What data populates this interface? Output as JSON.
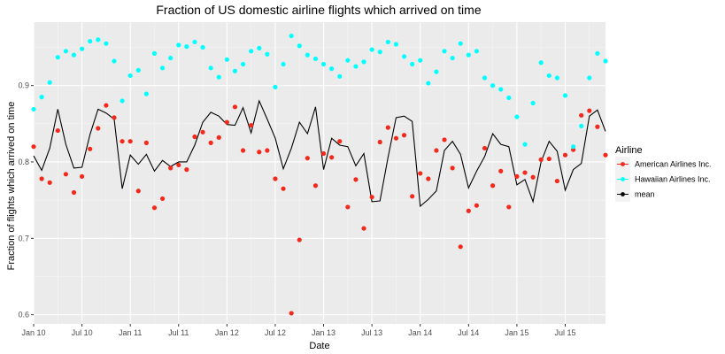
{
  "chart_data": {
    "type": "scatter",
    "title": "Fraction of US domestic airline flights which arrived on time",
    "xlabel": "Date",
    "ylabel": "Fraction of flights which arrived on time",
    "x_tick_labels": [
      "Jan 10",
      "Jul 10",
      "Jan 11",
      "Jul 11",
      "Jan 12",
      "Jul 12",
      "Jan 13",
      "Jul 13",
      "Jan 14",
      "Jul 14",
      "Jan 15",
      "Jul 15"
    ],
    "y_ticks": [
      0.6,
      0.7,
      0.8,
      0.9
    ],
    "y_tick_labels": [
      "0.6",
      "0.7",
      "0.8",
      "0.9"
    ],
    "ylim": [
      0.588,
      0.983
    ],
    "x_range_months": [
      0,
      71
    ],
    "grid": true,
    "legend": {
      "title": "Airline",
      "position": "right",
      "entries": [
        "American Airlines Inc.",
        "Hawaiian Airlines Inc.",
        "mean"
      ]
    },
    "colors": {
      "american": "#f8766d",
      "american_fill": "#f3291c",
      "hawaiian": "#00ffff",
      "mean": "#000000",
      "panel": "#ebebeb",
      "grid_major": "#ffffff"
    },
    "series": [
      {
        "name": "American Airlines Inc.",
        "kind": "points",
        "values": [
          0.82,
          0.778,
          0.773,
          0.841,
          0.784,
          0.76,
          0.781,
          0.817,
          0.844,
          0.874,
          0.858,
          0.827,
          0.827,
          0.762,
          0.825,
          0.74,
          0.752,
          0.792,
          0.796,
          0.79,
          0.833,
          0.839,
          0.825,
          0.832,
          0.852,
          0.872,
          0.815,
          0.848,
          0.813,
          0.815,
          0.778,
          0.765,
          0.602,
          0.698,
          0.805,
          0.769,
          0.811,
          0.806,
          0.827,
          0.741,
          0.777,
          0.713,
          0.754,
          0.826,
          0.845,
          0.831,
          0.835,
          0.755,
          0.785,
          0.778,
          0.815,
          0.829,
          0.792,
          0.689,
          0.736,
          0.743,
          0.818,
          0.769,
          0.788,
          0.741,
          0.781,
          0.786,
          0.78,
          0.803,
          0.804,
          0.775,
          0.809,
          0.816,
          0.861,
          0.867,
          0.846,
          0.809
        ]
      },
      {
        "name": "Hawaiian Airlines Inc.",
        "kind": "points",
        "values": [
          0.869,
          0.885,
          0.904,
          0.937,
          0.945,
          0.94,
          0.948,
          0.958,
          0.96,
          0.955,
          0.932,
          0.88,
          0.913,
          0.92,
          0.889,
          0.942,
          0.923,
          0.936,
          0.953,
          0.951,
          0.957,
          0.95,
          0.923,
          0.911,
          0.934,
          0.919,
          0.928,
          0.945,
          0.949,
          0.941,
          0.898,
          0.928,
          0.965,
          0.952,
          0.94,
          0.935,
          0.928,
          0.922,
          0.912,
          0.933,
          0.925,
          0.931,
          0.947,
          0.944,
          0.957,
          0.954,
          0.938,
          0.928,
          0.933,
          0.903,
          0.918,
          0.945,
          0.936,
          0.955,
          0.94,
          0.945,
          0.91,
          0.9,
          0.895,
          0.884,
          0.859,
          0.823,
          0.877,
          0.93,
          0.913,
          0.91,
          0.887,
          0.82,
          0.847,
          0.91,
          0.942,
          0.932
        ]
      },
      {
        "name": "mean",
        "kind": "line",
        "values": [
          0.808,
          0.789,
          0.818,
          0.869,
          0.823,
          0.792,
          0.793,
          0.836,
          0.869,
          0.864,
          0.856,
          0.765,
          0.809,
          0.797,
          0.81,
          0.788,
          0.802,
          0.794,
          0.8,
          0.8,
          0.822,
          0.852,
          0.865,
          0.86,
          0.849,
          0.848,
          0.871,
          0.838,
          0.88,
          0.856,
          0.831,
          0.791,
          0.818,
          0.852,
          0.837,
          0.872,
          0.79,
          0.831,
          0.822,
          0.82,
          0.795,
          0.811,
          0.748,
          0.749,
          0.806,
          0.858,
          0.86,
          0.853,
          0.742,
          0.751,
          0.762,
          0.815,
          0.827,
          0.81,
          0.766,
          0.788,
          0.807,
          0.837,
          0.823,
          0.82,
          0.77,
          0.777,
          0.748,
          0.8,
          0.827,
          0.814,
          0.763,
          0.79,
          0.798,
          0.86,
          0.868,
          0.84
        ]
      }
    ]
  }
}
